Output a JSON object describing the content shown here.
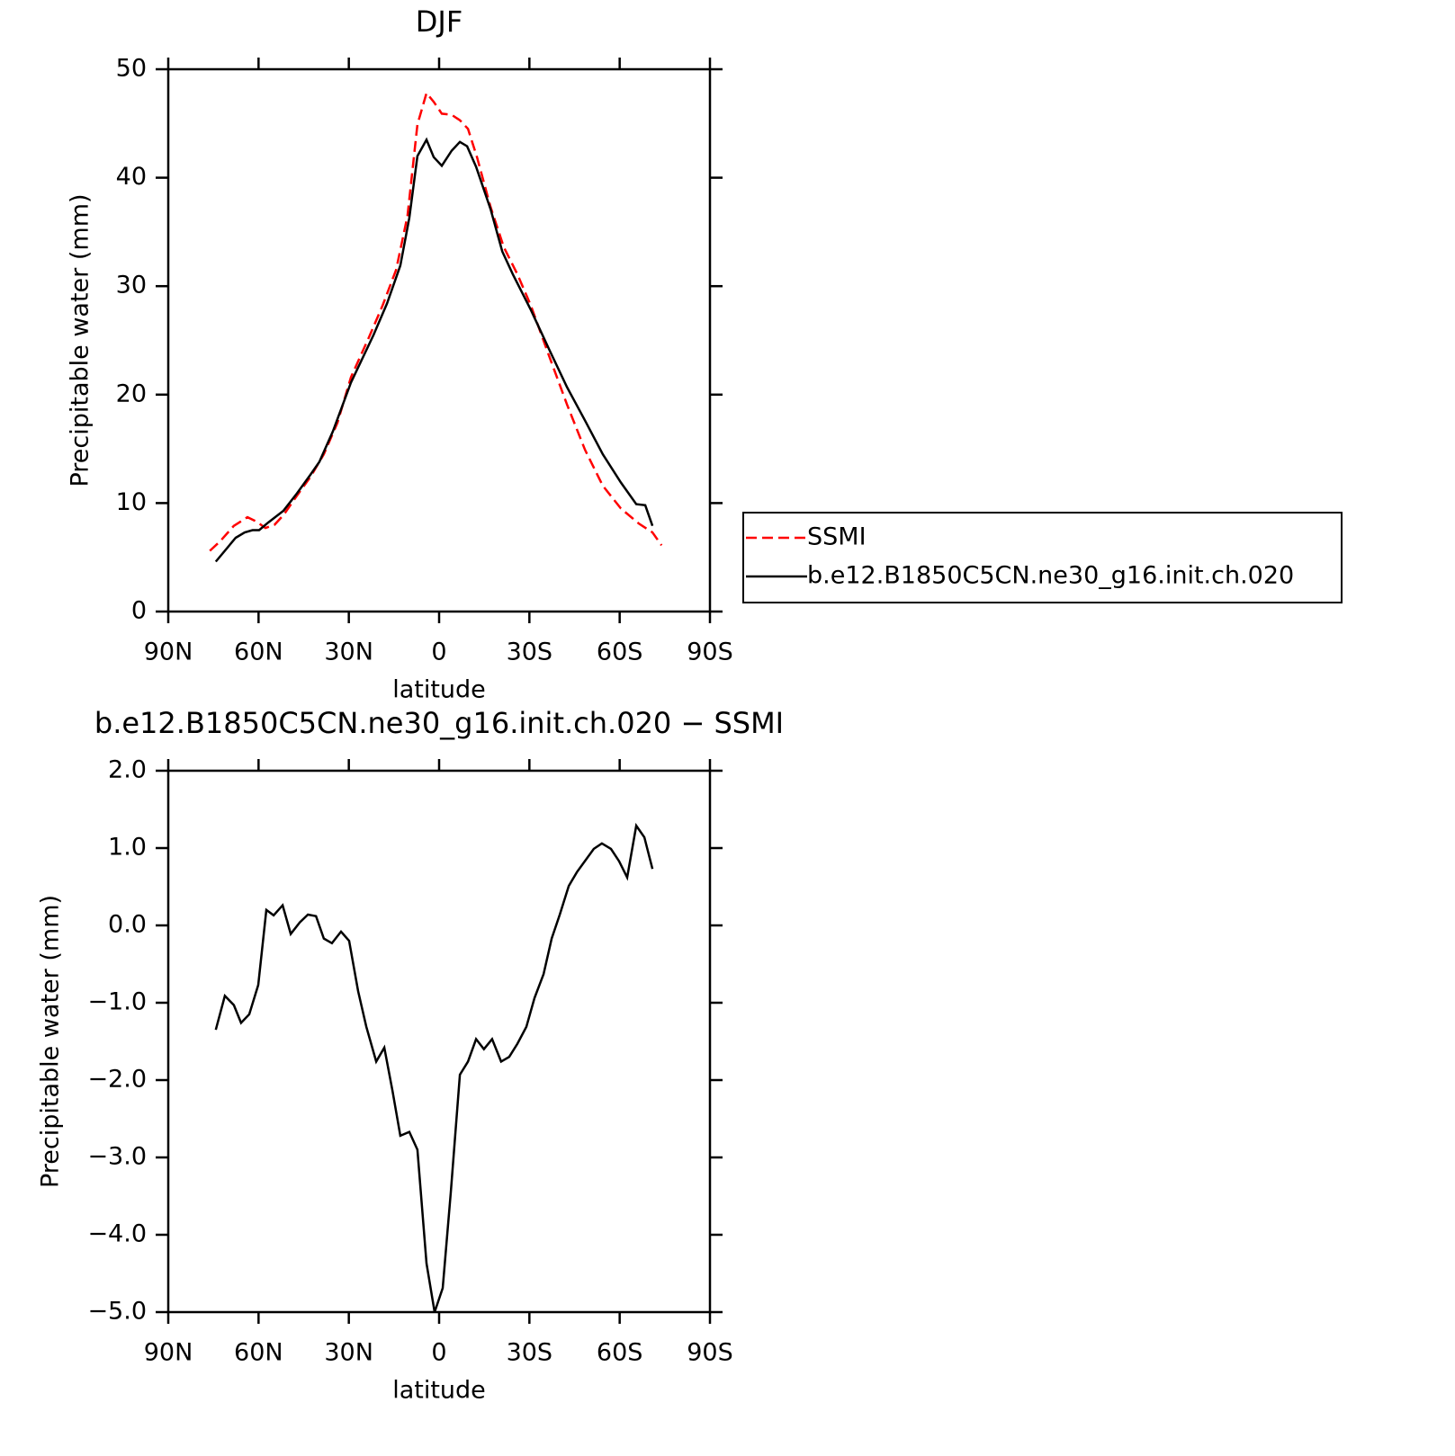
{
  "chart_data": [
    {
      "type": "line",
      "title": "DJF",
      "y_label": "Precipitable water (mm)",
      "x_label": "latitude",
      "xlim": [
        90,
        -90
      ],
      "xticks": [
        {
          "value": 90,
          "label": "90N"
        },
        {
          "value": 60,
          "label": "60N"
        },
        {
          "value": 30,
          "label": "30N"
        },
        0,
        {
          "value": -30,
          "label": "30S"
        },
        {
          "value": -60,
          "label": "60S"
        },
        {
          "value": -90,
          "label": "90S"
        }
      ],
      "ylim": [
        0,
        50
      ],
      "yticks": [
        0,
        10,
        20,
        30,
        40,
        50
      ],
      "legend": "right",
      "series": [
        {
          "name": "SSMI",
          "color": "#ff0000",
          "dash": "dashed",
          "x": [
            76.2,
            72.7,
            68.2,
            63.7,
            60.7,
            57.7,
            54.7,
            51.7,
            47.2,
            42.8,
            38.3,
            33.8,
            29.3,
            23.3,
            18.8,
            14.3,
            10.5,
            7.2,
            4.2,
            1.8,
            -0.9,
            -4.2,
            -6.9,
            -9.6,
            -12.6,
            -17.1,
            -21.5,
            -26,
            -30.5,
            -36.5,
            -42.5,
            -48.5,
            -54.4,
            -60.4,
            -66.4,
            -70.9,
            -73.9
          ],
          "values": [
            5.6,
            6.5,
            7.9,
            8.7,
            8.3,
            7.7,
            8.0,
            8.9,
            10.7,
            12.4,
            14.5,
            17.4,
            21.6,
            25.3,
            28.2,
            31.5,
            36.5,
            44.9,
            47.8,
            47.0,
            45.9,
            45.8,
            45.3,
            44.5,
            41.9,
            37.3,
            33.6,
            31.1,
            28.2,
            23.6,
            19.1,
            14.9,
            11.6,
            9.5,
            8.1,
            7.3,
            6.1
          ]
        },
        {
          "name": "b.e12.B1850C5CN.ne30_g16.init.ch.020",
          "color": "#000000",
          "dash": "solid",
          "x": [
            74.2,
            67.6,
            64.6,
            62,
            59.8,
            56.8,
            51.7,
            47.2,
            42.8,
            39.8,
            35.3,
            29.3,
            21.8,
            17.3,
            12.9,
            9.9,
            7.2,
            4.2,
            1.8,
            -0.9,
            -4.2,
            -6.9,
            -9.3,
            -12.3,
            -17.1,
            -21,
            -24.5,
            -30.5,
            -36.5,
            -42.5,
            -48.5,
            -54.4,
            -60.4,
            -65.5,
            -68.5,
            -70.9
          ],
          "values": [
            4.6,
            6.8,
            7.3,
            7.5,
            7.5,
            8.2,
            9.3,
            10.9,
            12.6,
            13.8,
            16.6,
            21.1,
            25.5,
            28.4,
            31.9,
            36.3,
            42.0,
            43.5,
            41.9,
            41.1,
            42.5,
            43.3,
            42.9,
            41.0,
            37.1,
            33.2,
            31.1,
            27.8,
            24.2,
            20.7,
            17.6,
            14.5,
            11.9,
            9.9,
            9.8,
            7.9
          ]
        }
      ]
    },
    {
      "type": "line",
      "title": "b.e12.B1850C5CN.ne30_g16.init.ch.020 − SSMI",
      "y_label": "Precipitable water (mm)",
      "x_label": "latitude",
      "xlim": [
        90,
        -90
      ],
      "xticks": [
        {
          "value": 90,
          "label": "90N"
        },
        {
          "value": 60,
          "label": "60N"
        },
        {
          "value": 30,
          "label": "30N"
        },
        0,
        {
          "value": -30,
          "label": "30S"
        },
        {
          "value": -60,
          "label": "60S"
        },
        {
          "value": -90,
          "label": "90S"
        }
      ],
      "ylim": [
        -5,
        2
      ],
      "yticks": [
        {
          "value": -5,
          "label": "−5.0"
        },
        {
          "value": -4,
          "label": "−4.0"
        },
        {
          "value": -3,
          "label": "−3.0"
        },
        {
          "value": -2,
          "label": "−2.0"
        },
        {
          "value": -1,
          "label": "−1.0"
        },
        {
          "value": 0,
          "label": "0.0"
        },
        {
          "value": 1,
          "label": "1.0"
        },
        {
          "value": 2,
          "label": "2.0"
        }
      ],
      "color": "#000000",
      "x": [
        74.2,
        71.2,
        68.2,
        65.8,
        63.1,
        60.1,
        57.4,
        55.0,
        52.0,
        49.3,
        46.3,
        43.6,
        40.9,
        38.3,
        35.6,
        32.6,
        29.9,
        26.9,
        24.2,
        20.9,
        18.2,
        15.5,
        12.9,
        9.9,
        7.2,
        4.2,
        1.5,
        -1.2,
        -3.9,
        -6.9,
        -9.6,
        -12.3,
        -14.9,
        -17.6,
        -20.6,
        -23.3,
        -26.0,
        -29.0,
        -31.7,
        -34.7,
        -37.4,
        -40.1,
        -43.1,
        -45.8,
        -48.8,
        -51.4,
        -54.1,
        -57.1,
        -59.8,
        -62.5,
        -65.5,
        -68.2,
        -70.9
      ],
      "values": [
        -1.35,
        -0.91,
        -1.03,
        -1.26,
        -1.15,
        -0.77,
        0.2,
        0.13,
        0.26,
        -0.11,
        0.04,
        0.14,
        0.12,
        -0.17,
        -0.23,
        -0.08,
        -0.2,
        -0.85,
        -1.31,
        -1.76,
        -1.58,
        -2.14,
        -2.72,
        -2.67,
        -2.9,
        -4.37,
        -5.0,
        -4.69,
        -3.45,
        -1.93,
        -1.76,
        -1.47,
        -1.6,
        -1.47,
        -1.76,
        -1.7,
        -1.53,
        -1.31,
        -0.94,
        -0.63,
        -0.17,
        0.14,
        0.51,
        0.69,
        0.85,
        0.99,
        1.06,
        0.99,
        0.83,
        0.62,
        1.29,
        1.14,
        0.73
      ]
    }
  ]
}
